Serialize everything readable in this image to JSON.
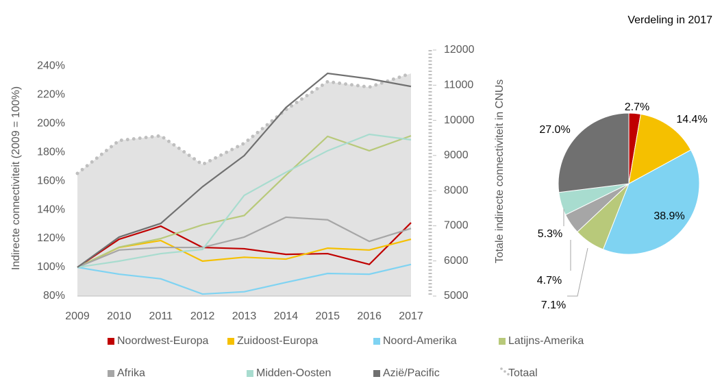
{
  "chart_data": [
    {
      "type": "line",
      "y_label": "Indirecte connectiviteit (2009 = 100%)",
      "y2_label": "Totale indirecte connectiviteit in CNUs",
      "x": [
        2009,
        2010,
        2011,
        2012,
        2013,
        2014,
        2015,
        2016,
        2017
      ],
      "xlim": [
        2009,
        2017
      ],
      "xticks": [
        2009,
        2010,
        2011,
        2012,
        2013,
        2014,
        2015,
        2016,
        2017
      ],
      "ylim": [
        80,
        251
      ],
      "yticks": [
        {
          "value": 80,
          "label": "80%"
        },
        {
          "value": 100,
          "label": "100%"
        },
        {
          "value": 120,
          "label": "120%"
        },
        {
          "value": 140,
          "label": "140%"
        },
        {
          "value": 160,
          "label": "160%"
        },
        {
          "value": 180,
          "label": "180%"
        },
        {
          "value": 200,
          "label": "200%"
        },
        {
          "value": 220,
          "label": "220%"
        },
        {
          "value": 240,
          "label": "240%"
        }
      ],
      "y2lim": [
        5000,
        12000
      ],
      "y2ticks": [
        5000,
        6000,
        7000,
        8000,
        9000,
        10000,
        11000,
        12000
      ],
      "series": [
        {
          "name": "Noordwest-Europa",
          "color": "#c00000",
          "values": [
            100,
            119.5,
            128.6,
            113.8,
            112.9,
            109,
            109.5,
            102,
            131
          ]
        },
        {
          "name": "Zuidoost-Europa",
          "color": "#f5c000",
          "values": [
            100,
            113.8,
            118.6,
            104.3,
            107,
            105.7,
            113.3,
            112,
            119.5
          ]
        },
        {
          "name": "Noord-Amerika",
          "color": "#7fd3f2",
          "values": [
            100,
            95.2,
            92,
            81.4,
            83,
            89.5,
            95.7,
            95.2,
            102
          ]
        },
        {
          "name": "Latijns-Amerika",
          "color": "#b8c97a",
          "values": [
            100,
            114,
            120,
            129.5,
            136,
            164,
            191,
            181,
            191.4
          ]
        },
        {
          "name": "Afrika",
          "color": "#a6a6a6",
          "values": [
            100,
            112,
            113.8,
            113.8,
            121,
            134.8,
            133,
            118,
            127
          ]
        },
        {
          "name": "Midden-Oosten",
          "color": "#a8dccf",
          "values": [
            100,
            104.3,
            109.5,
            112.4,
            150,
            166,
            181,
            192.4,
            188.6
          ]
        },
        {
          "name": "Azië/Pacific",
          "color": "#707070",
          "values": [
            100,
            121,
            130.5,
            156,
            177.6,
            211,
            234.8,
            231,
            225.7
          ]
        },
        {
          "name": "Totaal",
          "color": "#bfbfbf",
          "axis": "y2",
          "style": "dotted-area",
          "values": [
            8490,
            9425,
            9560,
            8743,
            9347,
            10302,
            11100,
            10945,
            11335
          ]
        }
      ]
    },
    {
      "type": "pie",
      "title": "Verdeling in 2017",
      "values": [
        2.7,
        14.4,
        38.9,
        7.1,
        4.7,
        5.3,
        27.0
      ],
      "value_labels": [
        "2.7%",
        "14.4%",
        "38.9%",
        "7.1%",
        "4.7%",
        "5.3%",
        "27.0%"
      ],
      "colors": [
        "#c00000",
        "#f5c000",
        "#7fd3f2",
        "#b8c97a",
        "#a6a6a6",
        "#a8dccf",
        "#707070"
      ]
    }
  ]
}
